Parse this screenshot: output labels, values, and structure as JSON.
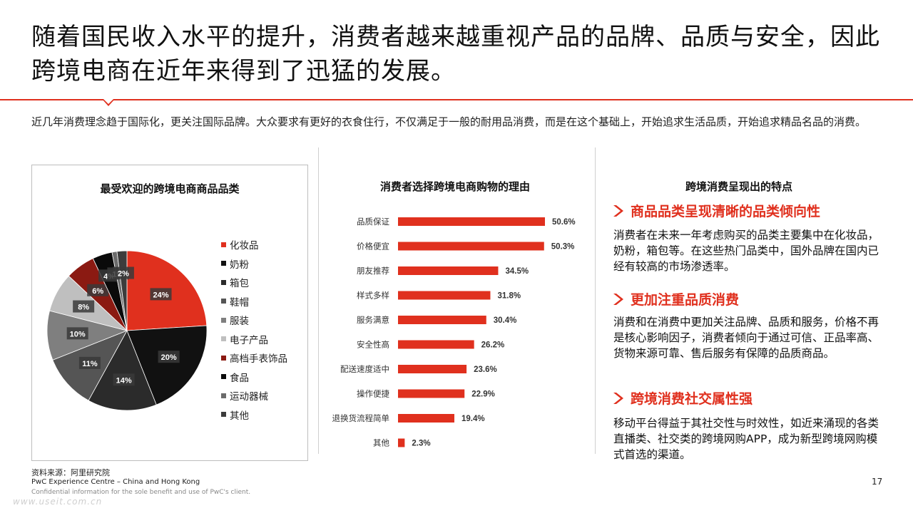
{
  "title": "随着国民收入水平的提升，消费者越来越重视产品的品牌、品质与安全，因此跨境电商在近年来得到了迅猛的发展。",
  "intro": "近几年消费理念趋于国际化，更关注国际品牌。大众要求有更好的衣食住行，不仅满足于一般的耐用品消费，而是在这个基础上，开始追求生活品质，开始追求精品名品的消费。",
  "pie": {
    "title": "最受欢迎的跨境电商商品品类"
  },
  "bars": {
    "title": "消费者选择跨境电商购物的理由"
  },
  "chart_data": [
    {
      "type": "pie",
      "title": "最受欢迎的跨境电商商品品类",
      "categories": [
        "化妆品",
        "奶粉",
        "箱包",
        "鞋帽",
        "服装",
        "电子产品",
        "高档手表饰品",
        "食品",
        "运动器械",
        "其他"
      ],
      "values": [
        24,
        20,
        14,
        11,
        10,
        8,
        6,
        4,
        1,
        2
      ],
      "labels": [
        "24%",
        "20%",
        "14%",
        "11%",
        "10%",
        "8%",
        "6%",
        "4%",
        "1%",
        "2%"
      ],
      "colors": [
        "#e0301e",
        "#111111",
        "#2b2b2b",
        "#555555",
        "#7f7f7f",
        "#bfbfbf",
        "#8b1a12",
        "#0a0a0a",
        "#6b6b6b",
        "#3c3c3c"
      ],
      "legend": "right"
    },
    {
      "type": "bar",
      "orientation": "horizontal",
      "title": "消费者选择跨境电商购物的理由",
      "categories": [
        "品质保证",
        "价格便宜",
        "朋友推荐",
        "样式多样",
        "服务满意",
        "安全性高",
        "配送速度适中",
        "操作便捷",
        "退换货流程简单",
        "其他"
      ],
      "values": [
        50.6,
        50.3,
        34.5,
        31.8,
        30.4,
        26.2,
        23.6,
        22.9,
        19.4,
        2.3
      ],
      "labels": [
        "50.6%",
        "50.3%",
        "34.5%",
        "31.8%",
        "30.4%",
        "26.2%",
        "23.6%",
        "22.9%",
        "19.4%",
        "2.3%"
      ],
      "color": "#e0301e"
    }
  ],
  "features": {
    "title": "跨境消费呈现出的特点",
    "items": [
      {
        "heading": "商品品类呈现清晰的品类倾向性",
        "text": "消费者在未来一年考虑购买的品类主要集中在化妆品，奶粉，箱包等。在这些热门品类中，国外品牌在国内已经有较高的市场渗透率。"
      },
      {
        "heading": "更加注重品质消费",
        "text": "消费和在消费中更加关注品牌、品质和服务，价格不再是核心影响因子，消费者倾向于通过可信、正品率高、货物来源可靠、售后服务有保障的品质商品。"
      },
      {
        "heading": "跨境消费社交属性强",
        "text": "移动平台得益于其社交性与时效性，如近来涌现的各类直播类、社交类的跨境网购APP，成为新型跨境网购模式首选的渠道。"
      }
    ]
  },
  "footer": {
    "source": "资料来源：阿里研究院",
    "line1": "PwC Experience Centre – China and Hong Kong",
    "line2": "Confidential information for the sole benefit and use of PwC's client.",
    "watermark": "www.useit.com.cn",
    "page": "17"
  },
  "colors": {
    "accent": "#e0301e"
  },
  "icons": {
    "feature_bullet": "chevron-right-icon"
  }
}
